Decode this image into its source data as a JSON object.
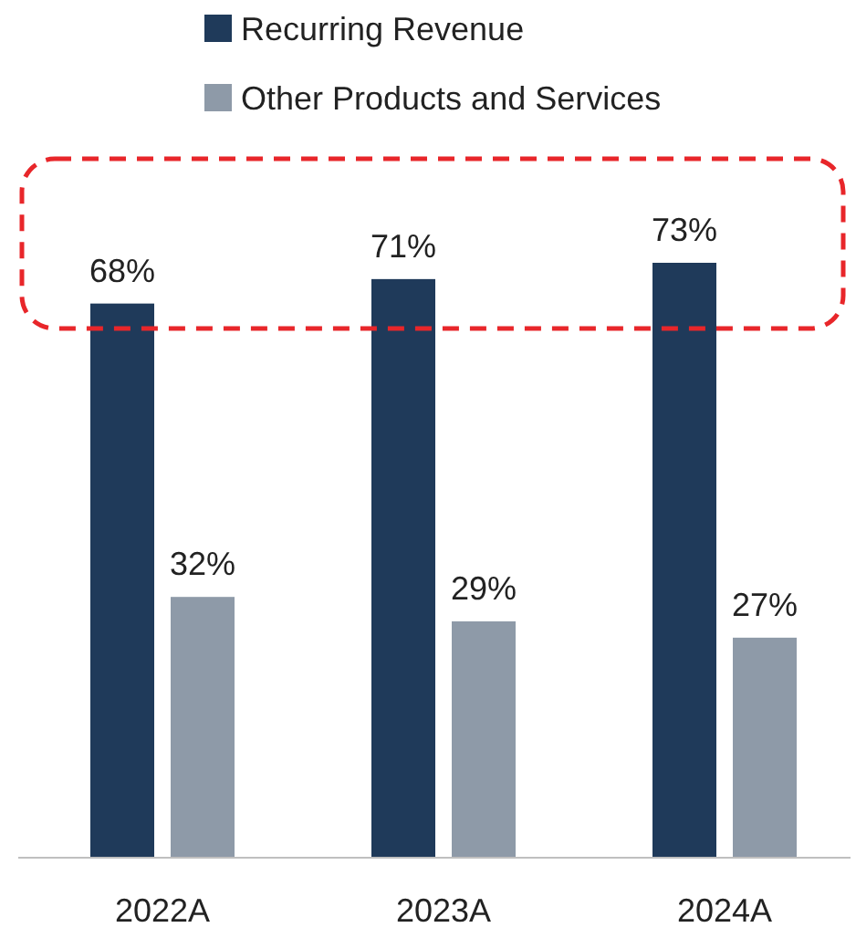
{
  "chart_data": {
    "type": "bar",
    "categories": [
      "2022A",
      "2023A",
      "2024A"
    ],
    "series": [
      {
        "name": "Recurring Revenue",
        "color": "#1f3a5a",
        "values": [
          68,
          71,
          73
        ],
        "value_labels": [
          "68%",
          "71%",
          "73%"
        ]
      },
      {
        "name": "Other Products and Services",
        "color": "#8e9aa8",
        "values": [
          32,
          29,
          27
        ],
        "value_labels": [
          "32%",
          "29%",
          "27%"
        ]
      }
    ],
    "legend": "top"
  }
}
